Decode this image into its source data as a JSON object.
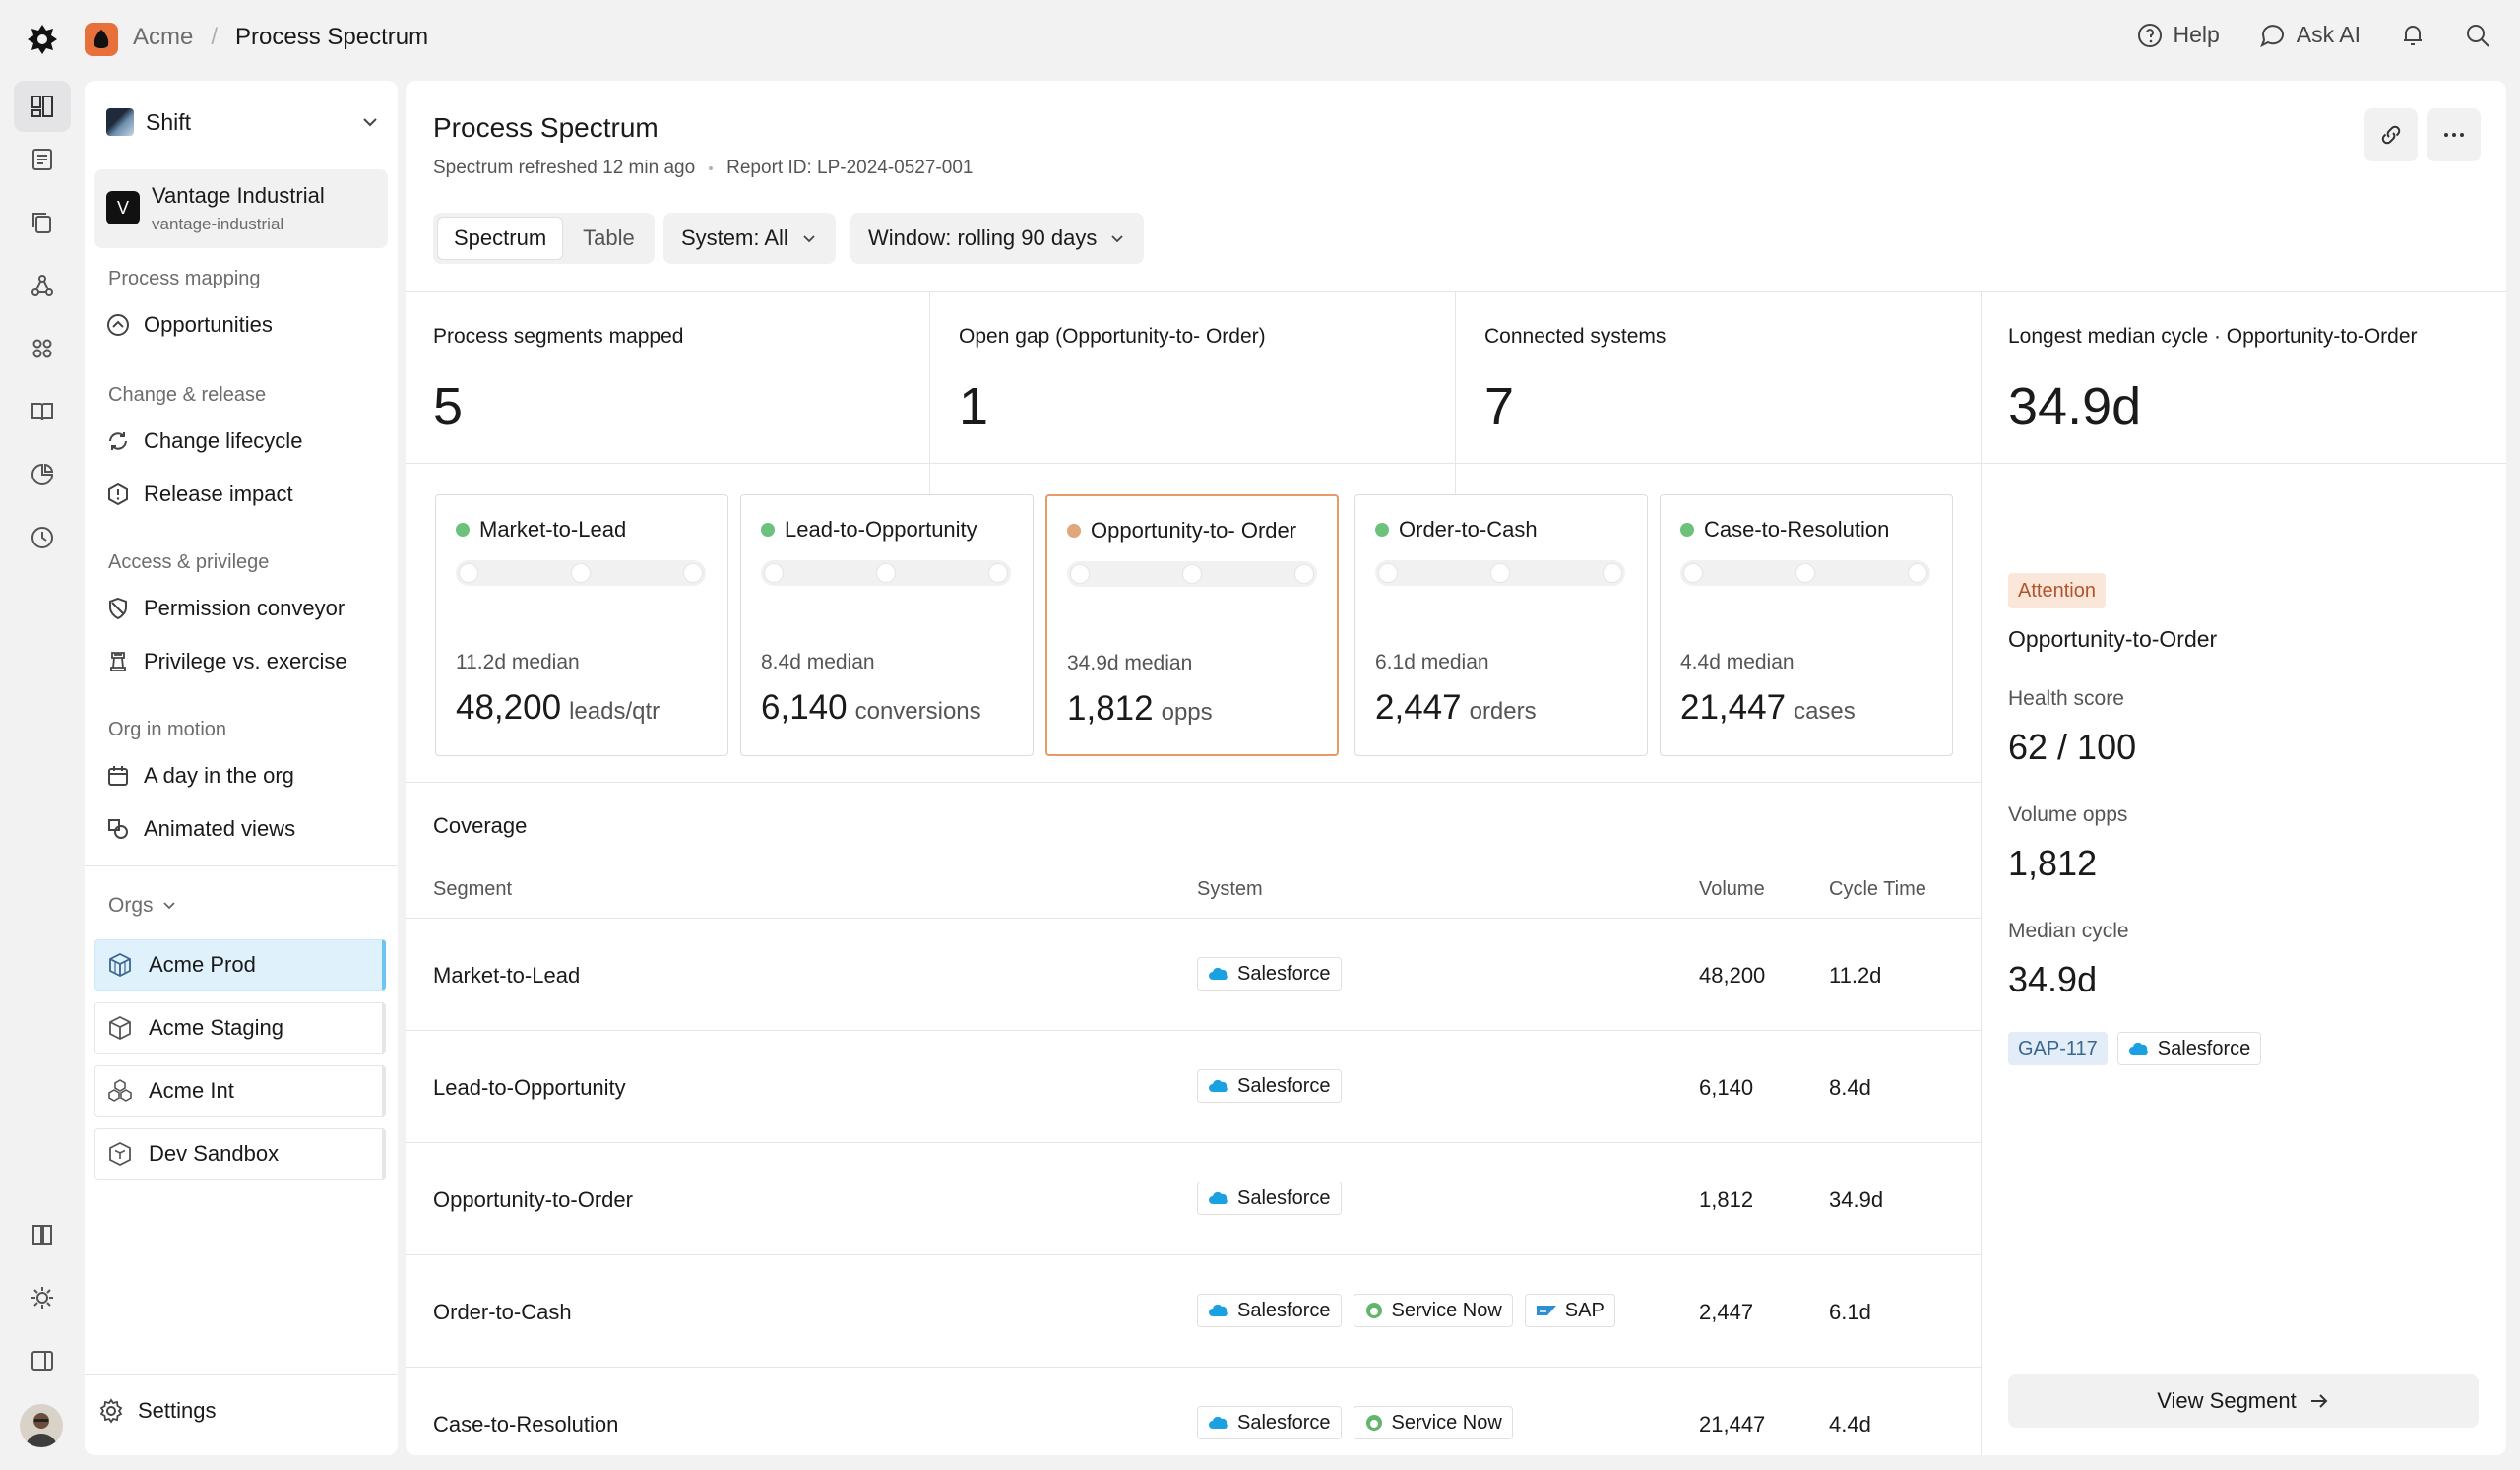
{
  "topbar": {
    "breadcrumb_org": "Acme",
    "breadcrumb_sep": "/",
    "breadcrumb_page": "Process Spectrum",
    "help_label": "Help",
    "ask_ai_label": "Ask AI"
  },
  "nav": {
    "workspace": "Shift",
    "tenant_name": "Vantage Industrial",
    "tenant_slug": "vantage-industrial",
    "tenant_initial": "V",
    "sections": [
      {
        "title": "Process mapping",
        "items": [
          {
            "label": "Opportunities",
            "icon": "opportunities-icon"
          }
        ]
      },
      {
        "title": "Change & release",
        "items": [
          {
            "label": "Change lifecycle",
            "icon": "cycle-icon"
          },
          {
            "label": "Release impact",
            "icon": "alert-icon"
          }
        ]
      },
      {
        "title": "Access & privilege",
        "items": [
          {
            "label": "Permission conveyor",
            "icon": "shield-icon"
          },
          {
            "label": "Privilege vs. exercise",
            "icon": "chess-icon"
          }
        ]
      },
      {
        "title": "Org in motion",
        "items": [
          {
            "label": "A day in the org",
            "icon": "calendar-icon"
          },
          {
            "label": "Animated views",
            "icon": "shapes-icon"
          }
        ]
      }
    ],
    "orgs_label": "Orgs",
    "orgs": [
      {
        "label": "Acme Prod",
        "active": true
      },
      {
        "label": "Acme Staging",
        "active": false
      },
      {
        "label": "Acme Int",
        "active": false
      },
      {
        "label": "Dev Sandbox",
        "active": false
      }
    ],
    "settings_label": "Settings"
  },
  "header": {
    "title": "Process Spectrum",
    "refreshed": "Spectrum refreshed 12 min ago",
    "report_id": "Report ID: LP-2024-0527-001",
    "tabs": [
      {
        "label": "Spectrum",
        "active": true
      },
      {
        "label": "Table",
        "active": false
      }
    ],
    "system_filter": "System: All",
    "window_filter": "Window: rolling 90 days"
  },
  "kpis": [
    {
      "label": "Process segments mapped",
      "value": "5"
    },
    {
      "label": "Open gap (Opportunity-to- Order)",
      "value": "1"
    },
    {
      "label": "Connected systems",
      "value": "7"
    },
    {
      "label": "Longest median cycle · Opportunity-to-Order",
      "value": "34.9d"
    }
  ],
  "segments": [
    {
      "name": "Market-to-Lead",
      "median": "11.2d median",
      "value": "48,200",
      "unit": "leads/qtr",
      "status_color": "#6cc27a",
      "highlight": false
    },
    {
      "name": "Lead-to-Opportunity",
      "median": "8.4d median",
      "value": "6,140",
      "unit": "conversions",
      "status_color": "#6cc27a",
      "highlight": false
    },
    {
      "name": "Opportunity-to- Order",
      "median": "34.9d median",
      "value": "1,812",
      "unit": "opps",
      "status_color": "#e0a67c",
      "highlight": true
    },
    {
      "name": "Order-to-Cash",
      "median": "6.1d median",
      "value": "2,447",
      "unit": "orders",
      "status_color": "#6cc27a",
      "highlight": false
    },
    {
      "name": "Case-to-Resolution",
      "median": "4.4d median",
      "value": "21,447",
      "unit": "cases",
      "status_color": "#6cc27a",
      "highlight": false
    }
  ],
  "coverage": {
    "title": "Coverage",
    "columns": [
      "Segment",
      "System",
      "Volume",
      "Cycle Time"
    ],
    "rows": [
      {
        "segment": "Market-to-Lead",
        "systems": [
          "Salesforce"
        ],
        "volume": "48,200",
        "cycle": "11.2d"
      },
      {
        "segment": "Lead-to-Opportunity",
        "systems": [
          "Salesforce"
        ],
        "volume": "6,140",
        "cycle": "8.4d"
      },
      {
        "segment": "Opportunity-to-Order",
        "systems": [
          "Salesforce"
        ],
        "volume": "1,812",
        "cycle": "34.9d"
      },
      {
        "segment": "Order-to-Cash",
        "systems": [
          "Salesforce",
          "Service Now",
          "SAP"
        ],
        "volume": "2,447",
        "cycle": "6.1d"
      },
      {
        "segment": "Case-to-Resolution",
        "systems": [
          "Salesforce",
          "Service Now"
        ],
        "volume": "21,447",
        "cycle": "4.4d"
      }
    ]
  },
  "detail": {
    "badge": "Attention",
    "segment": "Opportunity-to-Order",
    "health_label": "Health score",
    "health_value": "62 / 100",
    "volume_label": "Volume opps",
    "volume_value": "1,812",
    "cycle_label": "Median cycle",
    "cycle_value": "34.9d",
    "gap_id": "GAP-117",
    "system": "Salesforce",
    "view_button": "View Segment"
  },
  "colors": {
    "accent_orange": "#e8703a",
    "ok_green": "#6cc27a",
    "attention": "#b4532a",
    "org_active": "#dff1fb"
  }
}
